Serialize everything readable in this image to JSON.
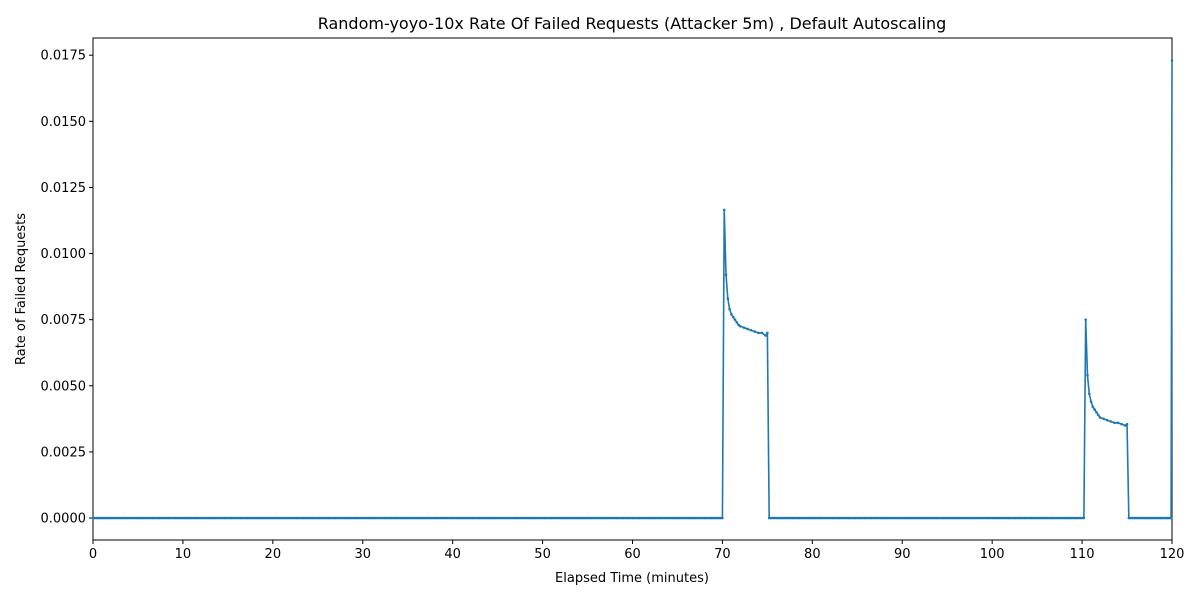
{
  "chart_data": {
    "type": "line",
    "title": "Random-yoyo-10x Rate Of Failed Requests (Attacker 5m) , Default Autoscaling",
    "xlabel": "Elapsed Time (minutes)",
    "ylabel": "Rate of Failed Requests",
    "xlim": [
      0,
      120
    ],
    "ylim": [
      -0.00083,
      0.01815
    ],
    "x_ticks": [
      0,
      10,
      20,
      30,
      40,
      50,
      60,
      70,
      80,
      90,
      100,
      110,
      120
    ],
    "x_tick_labels": [
      "0",
      "10",
      "20",
      "30",
      "40",
      "50",
      "60",
      "70",
      "80",
      "90",
      "100",
      "110",
      "120"
    ],
    "y_ticks": [
      0,
      0.0025,
      0.005,
      0.0075,
      0.01,
      0.0125,
      0.015,
      0.0175
    ],
    "y_tick_labels": [
      "0.0000",
      "0.0025",
      "0.0050",
      "0.0075",
      "0.0100",
      "0.0125",
      "0.0150",
      "0.0175"
    ],
    "grid": false,
    "line_color": "#1f77b4",
    "series": [
      {
        "x": [
          0,
          70,
          70.2,
          70.4,
          70.6,
          70.8,
          71.0,
          71.2,
          71.4,
          71.6,
          71.8,
          72.0,
          72.4,
          72.8,
          73.2,
          73.6,
          74.0,
          74.4,
          74.8,
          75.0,
          75.2,
          110.2,
          110.4,
          110.6,
          110.8,
          111.0,
          111.2,
          111.4,
          111.6,
          111.8,
          112.0,
          112.4,
          112.8,
          113.2,
          113.6,
          114.0,
          114.4,
          114.8,
          115.0,
          115.2,
          119.9,
          120.0
        ],
        "y": [
          0,
          0,
          0.01165,
          0.0092,
          0.0083,
          0.0079,
          0.0077,
          0.0076,
          0.0075,
          0.0074,
          0.0073,
          0.00725,
          0.0072,
          0.00715,
          0.0071,
          0.00705,
          0.007,
          0.007,
          0.0069,
          0.007,
          0,
          0,
          0.0075,
          0.0054,
          0.0047,
          0.0044,
          0.0042,
          0.0041,
          0.004,
          0.0039,
          0.0038,
          0.00375,
          0.0037,
          0.00365,
          0.0036,
          0.0036,
          0.00355,
          0.0035,
          0.00355,
          0,
          0,
          0.0173
        ]
      }
    ]
  }
}
